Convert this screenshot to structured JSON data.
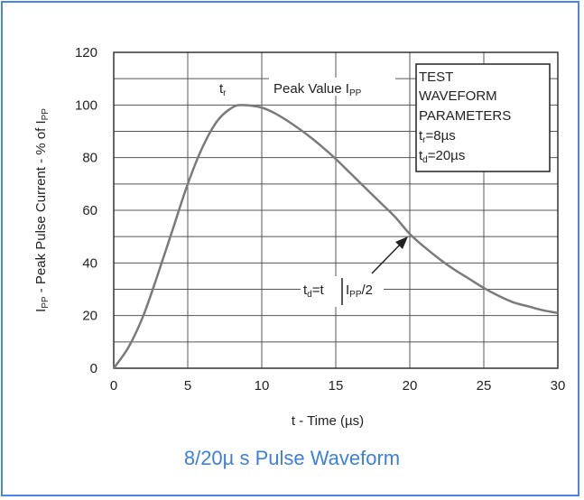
{
  "chart_data": {
    "type": "line",
    "x": [
      0,
      1,
      2,
      3,
      4,
      5,
      6,
      7,
      8,
      8.7,
      10,
      11,
      12,
      13,
      14,
      15,
      16,
      17,
      18,
      19,
      20,
      21,
      22,
      23,
      24,
      25,
      26,
      27,
      28,
      29,
      30
    ],
    "series": [
      {
        "values": [
          0,
          8,
          20,
          36,
          53,
          70,
          84,
          94,
          99,
          100,
          99,
          96.5,
          93,
          89,
          84.5,
          79.5,
          74,
          68.5,
          63,
          57.5,
          51,
          46,
          41.5,
          37.5,
          34,
          30.5,
          27.5,
          25,
          23.5,
          22,
          21
        ]
      }
    ],
    "xlabel": "t - Time (µs)",
    "ylabel": "IPP - Peak Pulse Current - % of IPP",
    "xlim": [
      0,
      30
    ],
    "ylim": [
      0,
      120
    ],
    "xticks": [
      "0",
      "5",
      "10",
      "15",
      "20",
      "25",
      "30"
    ],
    "yticks": [
      "0",
      "20",
      "40",
      "60",
      "80",
      "100",
      "120"
    ],
    "grid": true,
    "line_color": "#7a7a7a",
    "annotations": {
      "tr_label": "t",
      "tr_sub": "r",
      "peak_label": "Peak Value I",
      "peak_sub": "PP",
      "td_label_t": "t",
      "td_sub": "d",
      "td_eq": "=t",
      "td_ipp": "I",
      "td_ipp_sub": "PP",
      "td_div": "/2"
    },
    "box": {
      "line1": "TEST",
      "line2": "WAVEFORM",
      "line3": "PARAMETERS",
      "tr_t": "t",
      "tr_sub": "r",
      "tr_val": "=8µs",
      "td_t": "t",
      "td_sub": "d",
      "td_val": "=20µs"
    }
  },
  "caption": "8/20µ s Pulse Waveform"
}
